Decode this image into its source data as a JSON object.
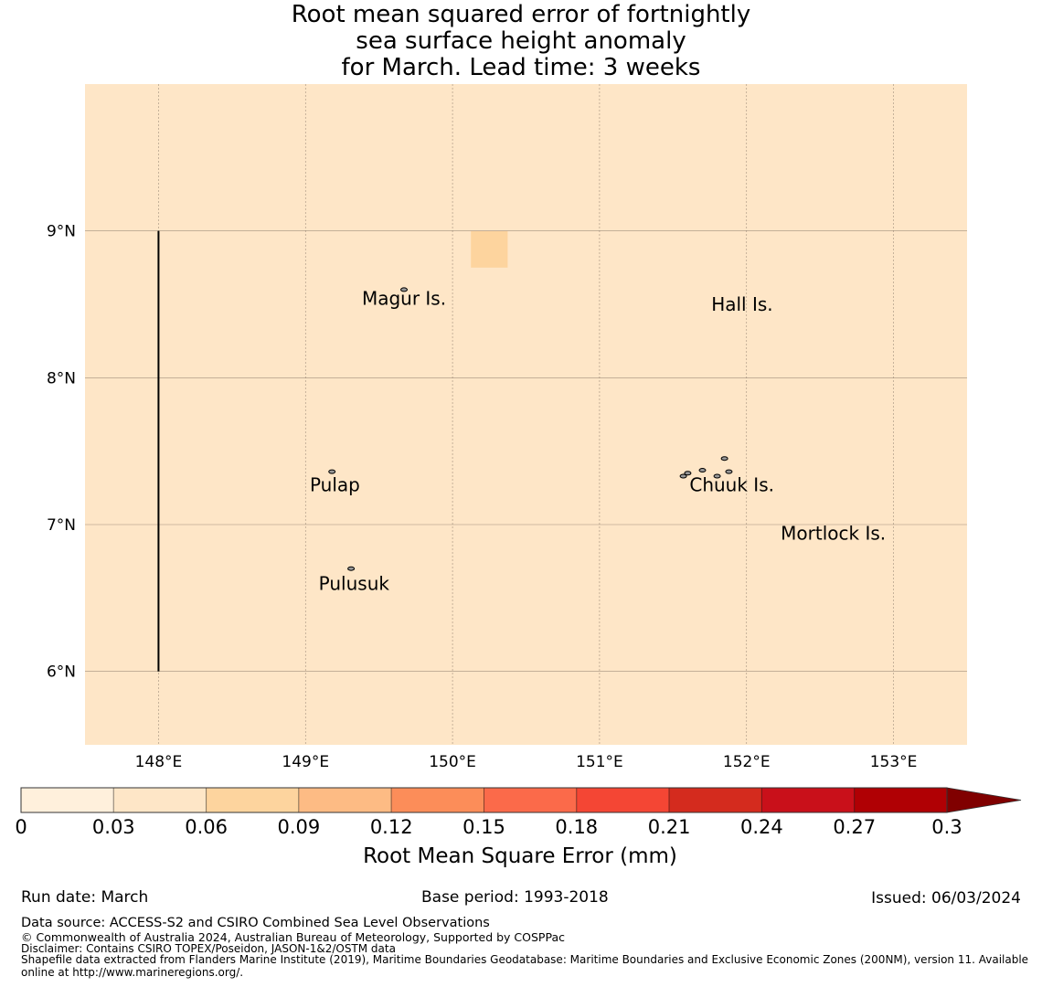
{
  "chart_data": {
    "type": "heatmap",
    "title_lines": [
      "Root mean squared error of fortnightly",
      "sea surface height anomaly",
      "for March. Lead time: 3 weeks"
    ],
    "xlim": [
      147.5,
      153.5
    ],
    "ylim": [
      5.5,
      10.0
    ],
    "x_ticks": [
      148,
      149,
      150,
      151,
      152,
      153
    ],
    "x_tick_labels": [
      "148°E",
      "149°E",
      "150°E",
      "151°E",
      "152°E",
      "153°E"
    ],
    "y_ticks": [
      9,
      8,
      7,
      6
    ],
    "y_tick_labels": [
      "9°N",
      "8°N",
      "7°N",
      "6°N"
    ],
    "background_value_color": "#fee6c7",
    "cells": [
      {
        "lon0": 150.125,
        "lon1": 150.375,
        "lat0": 8.75,
        "lat1": 9.0,
        "color": "#fdd49e"
      }
    ],
    "boundary_line": {
      "lon": 148.0,
      "lat0": 6.0,
      "lat1": 9.0
    },
    "places": [
      {
        "name": "Magur Is.",
        "lon": 149.67,
        "lat": 8.53
      },
      {
        "name": "Hall Is.",
        "lon": 151.97,
        "lat": 8.49
      },
      {
        "name": "Pulap",
        "lon": 149.2,
        "lat": 7.26
      },
      {
        "name": "Chuuk Is.",
        "lon": 151.9,
        "lat": 7.26
      },
      {
        "name": "Mortlock Is.",
        "lon": 152.59,
        "lat": 6.93
      },
      {
        "name": "Pulusuk",
        "lon": 149.33,
        "lat": 6.59
      }
    ],
    "colorbar": {
      "label": "Root Mean Square Error (mm)",
      "ticks": [
        "0",
        "0.03",
        "0.06",
        "0.09",
        "0.12",
        "0.15",
        "0.18",
        "0.21",
        "0.24",
        "0.27",
        "0.3"
      ],
      "colors": [
        "#fff0dc",
        "#fee6c7",
        "#fdd49e",
        "#fdbb84",
        "#fc8d59",
        "#fb6a4a",
        "#f44634",
        "#d42b1e",
        "#c9101a",
        "#b00004"
      ],
      "extend_color": "#800000"
    }
  },
  "footer": {
    "run_date": "Run date: March",
    "base_period": "Base period: 1993-2018",
    "issued": "Issued: 06/03/2024",
    "data_source": "Data source: ACCESS-S2 and CSIRO Combined Sea Level Observations",
    "copyright": "© Commonwealth of Australia 2024, Australian Bureau of Meteorology, Supported by COSPPac",
    "disclaimer": "Disclaimer: Contains CSIRO TOPEX/Poseidon, JASON-1&2/OSTM data",
    "shapefile_1": "Shapefile data extracted from Flanders Marine Institute (2019), Maritime Boundaries Geodatabase: Maritime Boundaries and Exclusive Economic Zones (200NM), version 11. Available",
    "shapefile_2": "online at http://www.marineregions.org/."
  }
}
